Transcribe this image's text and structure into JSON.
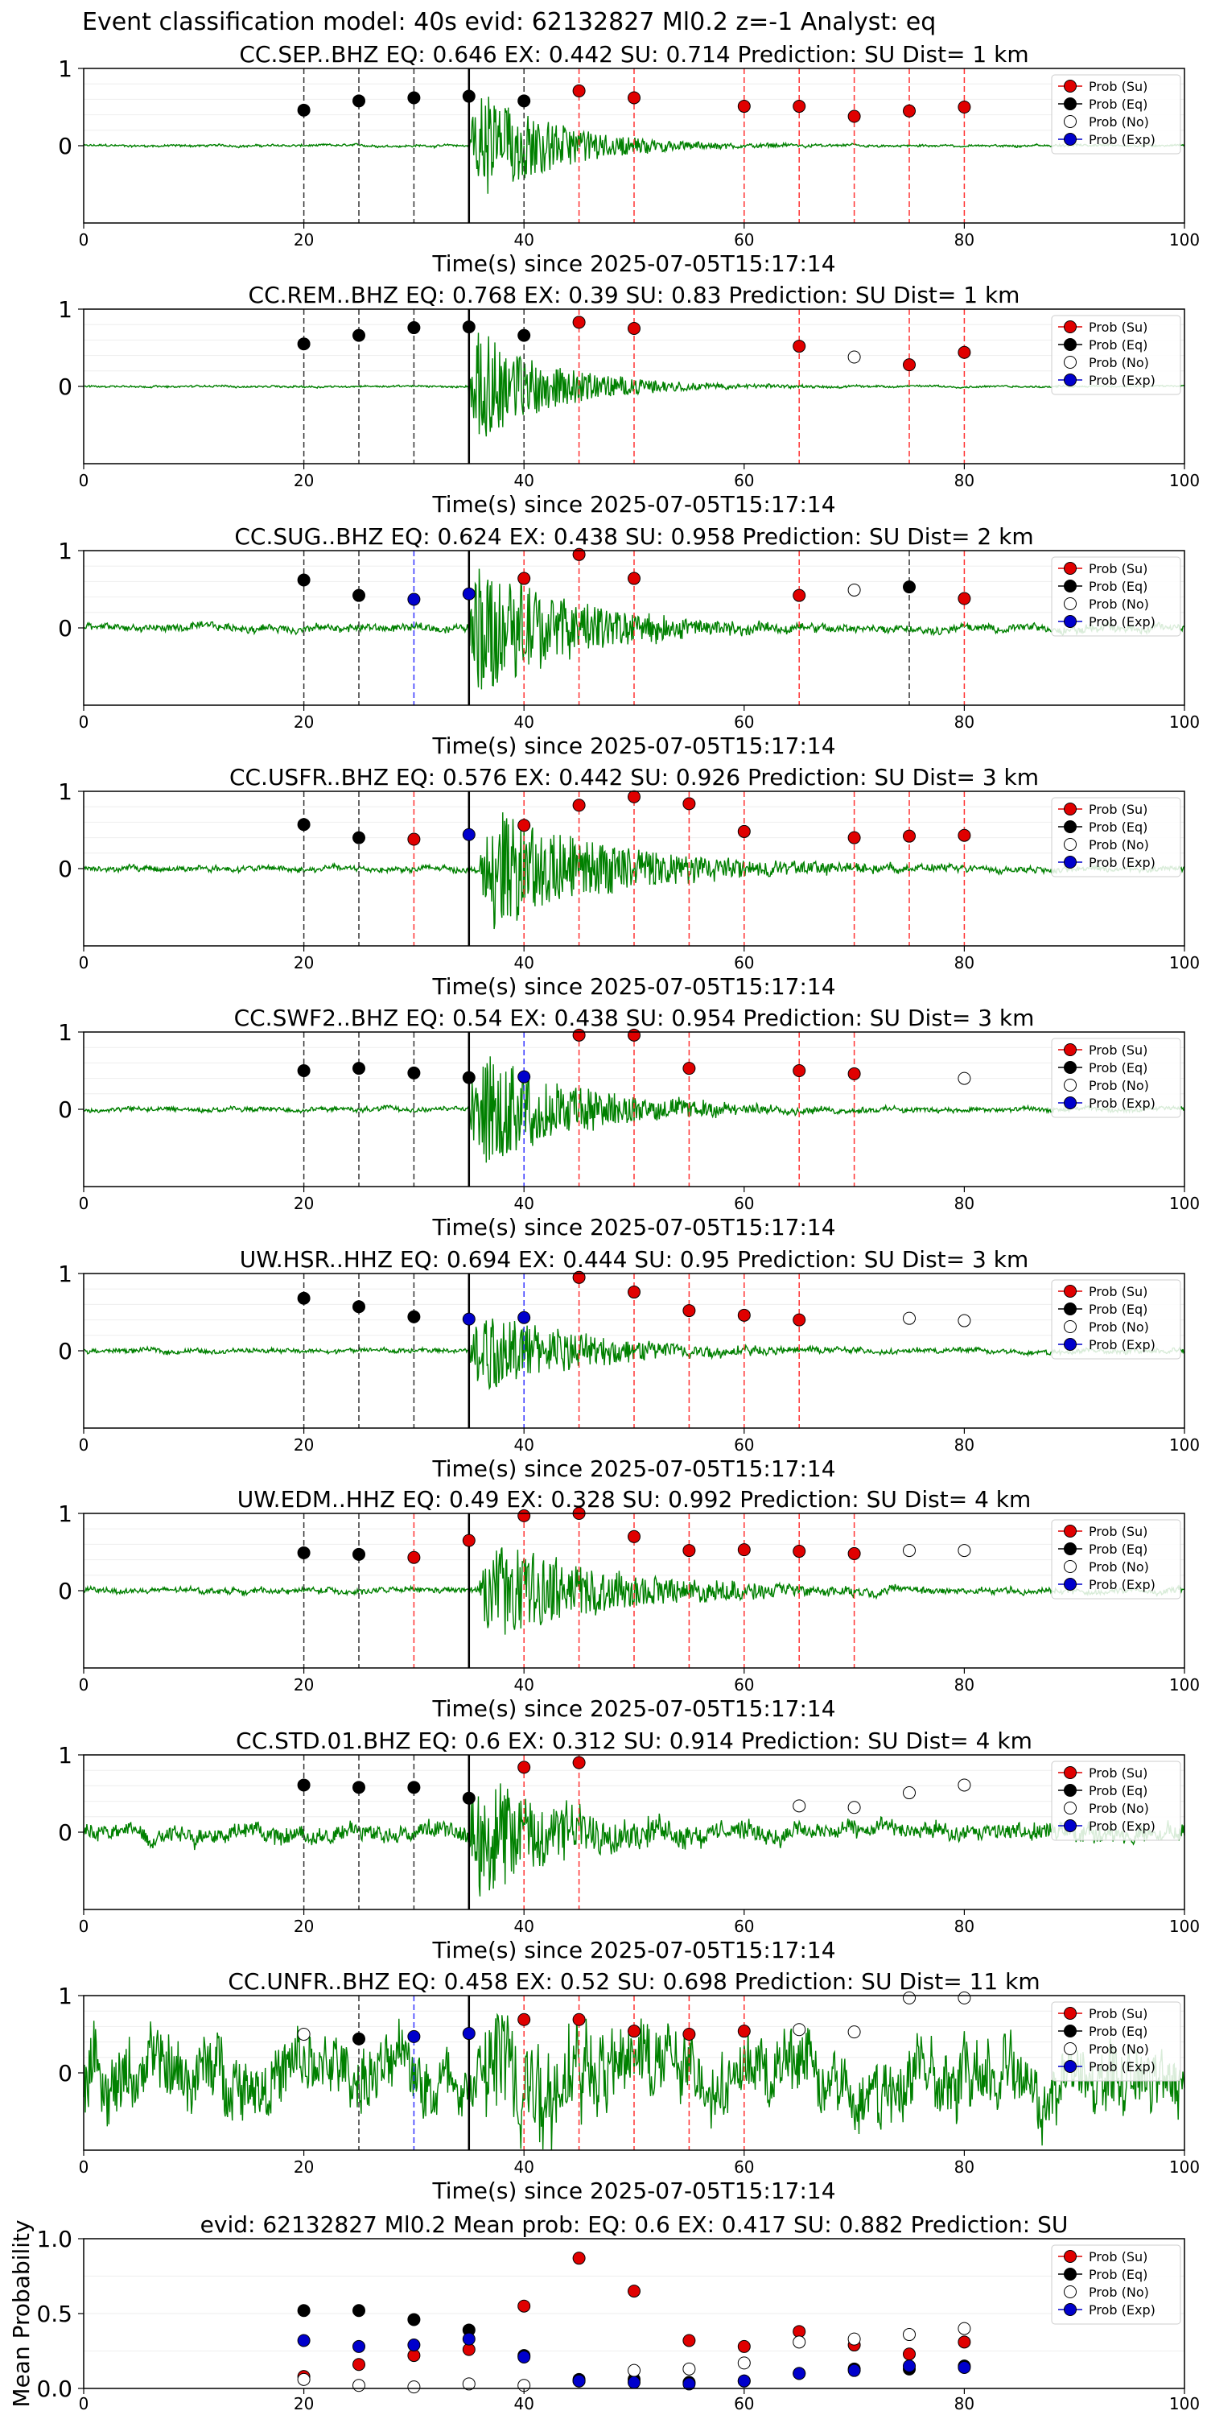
{
  "figure": {
    "title": "Event classification model: 40s evid: 62132827 Ml0.2 z=-1 Analyst: eq",
    "xlabel": "Time(s) since 2025-07-05T15:17:14",
    "legend": [
      "Prob (Su)",
      "Prob (Eq)",
      "Prob (No)",
      "Prob (Exp)"
    ]
  },
  "colors": {
    "su": "#e00000",
    "eq": "#000000",
    "no": "#ffffff",
    "exp": "#0000cc",
    "trace": "#008000"
  },
  "chart_data": [
    {
      "type": "scatter",
      "station": "CC.SEP..BHZ",
      "title": "CC.SEP..BHZ   EQ: 0.646  EX: 0.442  SU: 0.714   Prediction: SU    Dist= 1 km",
      "xlim": [
        0,
        100
      ],
      "ylim": [
        -1,
        1
      ],
      "xticks": [
        0,
        20,
        40,
        60,
        80,
        100
      ],
      "yticks": [
        0,
        1
      ],
      "noise": 0.012,
      "amp": 0.9,
      "decay": 7,
      "onset": 35,
      "points": [
        {
          "x": 20,
          "y": 0.46,
          "cls": "eq"
        },
        {
          "x": 25,
          "y": 0.58,
          "cls": "eq"
        },
        {
          "x": 30,
          "y": 0.62,
          "cls": "eq"
        },
        {
          "x": 35,
          "y": 0.64,
          "cls": "eq"
        },
        {
          "x": 40,
          "y": 0.58,
          "cls": "eq"
        },
        {
          "x": 45,
          "y": 0.71,
          "cls": "su"
        },
        {
          "x": 50,
          "y": 0.62,
          "cls": "su"
        },
        {
          "x": 60,
          "y": 0.51,
          "cls": "su"
        },
        {
          "x": 65,
          "y": 0.51,
          "cls": "su"
        },
        {
          "x": 70,
          "y": 0.38,
          "cls": "su"
        },
        {
          "x": 75,
          "y": 0.45,
          "cls": "su"
        },
        {
          "x": 80,
          "y": 0.5,
          "cls": "su"
        }
      ]
    },
    {
      "type": "scatter",
      "station": "CC.REM..BHZ",
      "title": "CC.REM..BHZ   EQ: 0.768  EX: 0.39  SU: 0.83   Prediction: SU    Dist= 1 km",
      "xlim": [
        0,
        100
      ],
      "ylim": [
        -1,
        1
      ],
      "xticks": [
        0,
        20,
        40,
        60,
        80,
        100
      ],
      "yticks": [
        0,
        1
      ],
      "noise": 0.01,
      "amp": 0.85,
      "decay": 7,
      "onset": 35,
      "points": [
        {
          "x": 20,
          "y": 0.55,
          "cls": "eq"
        },
        {
          "x": 25,
          "y": 0.66,
          "cls": "eq"
        },
        {
          "x": 30,
          "y": 0.76,
          "cls": "eq"
        },
        {
          "x": 35,
          "y": 0.77,
          "cls": "eq"
        },
        {
          "x": 40,
          "y": 0.66,
          "cls": "eq"
        },
        {
          "x": 45,
          "y": 0.83,
          "cls": "su"
        },
        {
          "x": 50,
          "y": 0.75,
          "cls": "su"
        },
        {
          "x": 65,
          "y": 0.52,
          "cls": "su"
        },
        {
          "x": 70,
          "y": 0.38,
          "cls": "no"
        },
        {
          "x": 75,
          "y": 0.28,
          "cls": "su"
        },
        {
          "x": 80,
          "y": 0.44,
          "cls": "su"
        }
      ]
    },
    {
      "type": "scatter",
      "station": "CC.SUG..BHZ",
      "title": "CC.SUG..BHZ   EQ: 0.624  EX: 0.438  SU: 0.958   Prediction: SU    Dist= 2 km",
      "xlim": [
        0,
        100
      ],
      "ylim": [
        -1,
        1
      ],
      "xticks": [
        0,
        20,
        40,
        60,
        80,
        100
      ],
      "yticks": [
        0,
        1
      ],
      "noise": 0.04,
      "amp": 1.0,
      "decay": 9,
      "onset": 35,
      "points": [
        {
          "x": 20,
          "y": 0.62,
          "cls": "eq"
        },
        {
          "x": 25,
          "y": 0.42,
          "cls": "eq"
        },
        {
          "x": 30,
          "y": 0.37,
          "cls": "exp"
        },
        {
          "x": 35,
          "y": 0.44,
          "cls": "exp"
        },
        {
          "x": 40,
          "y": 0.64,
          "cls": "su"
        },
        {
          "x": 45,
          "y": 0.95,
          "cls": "su"
        },
        {
          "x": 50,
          "y": 0.64,
          "cls": "su"
        },
        {
          "x": 65,
          "y": 0.42,
          "cls": "su"
        },
        {
          "x": 70,
          "y": 0.49,
          "cls": "no"
        },
        {
          "x": 75,
          "y": 0.53,
          "cls": "eq"
        },
        {
          "x": 80,
          "y": 0.38,
          "cls": "su"
        }
      ]
    },
    {
      "type": "scatter",
      "station": "CC.USFR..BHZ",
      "title": "CC.USFR..BHZ   EQ: 0.576  EX: 0.442  SU: 0.926   Prediction: SU    Dist= 3 km",
      "xlim": [
        0,
        100
      ],
      "ylim": [
        -1,
        1
      ],
      "xticks": [
        0,
        20,
        40,
        60,
        80,
        100
      ],
      "yticks": [
        0,
        1
      ],
      "noise": 0.03,
      "amp": 0.85,
      "decay": 12,
      "onset": 36,
      "points": [
        {
          "x": 20,
          "y": 0.57,
          "cls": "eq"
        },
        {
          "x": 25,
          "y": 0.4,
          "cls": "eq"
        },
        {
          "x": 30,
          "y": 0.38,
          "cls": "su"
        },
        {
          "x": 35,
          "y": 0.44,
          "cls": "exp"
        },
        {
          "x": 40,
          "y": 0.56,
          "cls": "su"
        },
        {
          "x": 45,
          "y": 0.82,
          "cls": "su"
        },
        {
          "x": 50,
          "y": 0.93,
          "cls": "su"
        },
        {
          "x": 55,
          "y": 0.84,
          "cls": "su"
        },
        {
          "x": 60,
          "y": 0.48,
          "cls": "su"
        },
        {
          "x": 70,
          "y": 0.4,
          "cls": "su"
        },
        {
          "x": 75,
          "y": 0.42,
          "cls": "su"
        },
        {
          "x": 80,
          "y": 0.43,
          "cls": "su"
        }
      ]
    },
    {
      "type": "scatter",
      "station": "CC.SWF2..BHZ",
      "title": "CC.SWF2..BHZ   EQ: 0.54  EX: 0.438  SU: 0.954   Prediction: SU    Dist= 3 km",
      "xlim": [
        0,
        100
      ],
      "ylim": [
        -1,
        1
      ],
      "xticks": [
        0,
        20,
        40,
        60,
        80,
        100
      ],
      "yticks": [
        0,
        1
      ],
      "noise": 0.025,
      "amp": 0.9,
      "decay": 9,
      "onset": 35,
      "points": [
        {
          "x": 20,
          "y": 0.5,
          "cls": "eq"
        },
        {
          "x": 25,
          "y": 0.53,
          "cls": "eq"
        },
        {
          "x": 30,
          "y": 0.47,
          "cls": "eq"
        },
        {
          "x": 35,
          "y": 0.41,
          "cls": "eq"
        },
        {
          "x": 40,
          "y": 0.42,
          "cls": "exp"
        },
        {
          "x": 45,
          "y": 0.96,
          "cls": "su"
        },
        {
          "x": 50,
          "y": 0.96,
          "cls": "su"
        },
        {
          "x": 55,
          "y": 0.53,
          "cls": "su"
        },
        {
          "x": 65,
          "y": 0.5,
          "cls": "su"
        },
        {
          "x": 70,
          "y": 0.46,
          "cls": "su"
        },
        {
          "x": 80,
          "y": 0.4,
          "cls": "no"
        }
      ]
    },
    {
      "type": "scatter",
      "station": "UW.HSR..HHZ",
      "title": "UW.HSR..HHZ   EQ: 0.694  EX: 0.444  SU: 0.95   Prediction: SU    Dist= 3 km",
      "xlim": [
        0,
        100
      ],
      "ylim": [
        -1,
        1
      ],
      "xticks": [
        0,
        20,
        40,
        60,
        80,
        100
      ],
      "yticks": [
        0,
        1
      ],
      "noise": 0.025,
      "amp": 0.6,
      "decay": 10,
      "onset": 35,
      "points": [
        {
          "x": 20,
          "y": 0.68,
          "cls": "eq"
        },
        {
          "x": 25,
          "y": 0.57,
          "cls": "eq"
        },
        {
          "x": 30,
          "y": 0.44,
          "cls": "eq"
        },
        {
          "x": 35,
          "y": 0.41,
          "cls": "exp"
        },
        {
          "x": 40,
          "y": 0.43,
          "cls": "exp"
        },
        {
          "x": 45,
          "y": 0.95,
          "cls": "su"
        },
        {
          "x": 50,
          "y": 0.76,
          "cls": "su"
        },
        {
          "x": 55,
          "y": 0.52,
          "cls": "su"
        },
        {
          "x": 60,
          "y": 0.46,
          "cls": "su"
        },
        {
          "x": 65,
          "y": 0.4,
          "cls": "su"
        },
        {
          "x": 75,
          "y": 0.42,
          "cls": "no"
        },
        {
          "x": 80,
          "y": 0.39,
          "cls": "no"
        }
      ]
    },
    {
      "type": "scatter",
      "station": "UW.EDM..HHZ",
      "title": "UW.EDM..HHZ   EQ: 0.49  EX: 0.328  SU: 0.992   Prediction: SU    Dist= 4 km",
      "xlim": [
        0,
        100
      ],
      "ylim": [
        -1,
        1
      ],
      "xticks": [
        0,
        20,
        40,
        60,
        80,
        100
      ],
      "yticks": [
        0,
        1
      ],
      "noise": 0.03,
      "amp": 0.7,
      "decay": 12,
      "onset": 36,
      "points": [
        {
          "x": 20,
          "y": 0.49,
          "cls": "eq"
        },
        {
          "x": 25,
          "y": 0.47,
          "cls": "eq"
        },
        {
          "x": 30,
          "y": 0.43,
          "cls": "su"
        },
        {
          "x": 35,
          "y": 0.65,
          "cls": "su"
        },
        {
          "x": 40,
          "y": 0.97,
          "cls": "su"
        },
        {
          "x": 45,
          "y": 1.0,
          "cls": "su"
        },
        {
          "x": 50,
          "y": 0.7,
          "cls": "su"
        },
        {
          "x": 55,
          "y": 0.52,
          "cls": "su"
        },
        {
          "x": 60,
          "y": 0.53,
          "cls": "su"
        },
        {
          "x": 65,
          "y": 0.51,
          "cls": "su"
        },
        {
          "x": 70,
          "y": 0.48,
          "cls": "su"
        },
        {
          "x": 75,
          "y": 0.52,
          "cls": "no"
        },
        {
          "x": 80,
          "y": 0.52,
          "cls": "no"
        }
      ]
    },
    {
      "type": "scatter",
      "station": "CC.STD.01.BHZ",
      "title": "CC.STD.01.BHZ   EQ: 0.6  EX: 0.312  SU: 0.914   Prediction: SU    Dist= 4 km",
      "xlim": [
        0,
        100
      ],
      "ylim": [
        -1,
        1
      ],
      "xticks": [
        0,
        20,
        40,
        60,
        80,
        100
      ],
      "yticks": [
        0,
        1
      ],
      "noise": 0.09,
      "amp": 1.0,
      "decay": 8,
      "onset": 35,
      "points": [
        {
          "x": 20,
          "y": 0.61,
          "cls": "eq"
        },
        {
          "x": 25,
          "y": 0.58,
          "cls": "eq"
        },
        {
          "x": 30,
          "y": 0.58,
          "cls": "eq"
        },
        {
          "x": 35,
          "y": 0.44,
          "cls": "eq"
        },
        {
          "x": 40,
          "y": 0.84,
          "cls": "su"
        },
        {
          "x": 45,
          "y": 0.9,
          "cls": "su"
        },
        {
          "x": 65,
          "y": 0.34,
          "cls": "no"
        },
        {
          "x": 70,
          "y": 0.32,
          "cls": "no"
        },
        {
          "x": 75,
          "y": 0.51,
          "cls": "no"
        },
        {
          "x": 80,
          "y": 0.61,
          "cls": "no"
        }
      ]
    },
    {
      "type": "scatter",
      "station": "CC.UNFR..BHZ",
      "title": "CC.UNFR..BHZ   EQ: 0.458  EX: 0.52  SU: 0.698   Prediction: SU    Dist= 11 km",
      "xlim": [
        0,
        100
      ],
      "ylim": [
        -1,
        1
      ],
      "xticks": [
        0,
        20,
        40,
        60,
        80,
        100
      ],
      "yticks": [
        0,
        1
      ],
      "noise": 0.35,
      "amp": 0.9,
      "decay": 10,
      "onset": 36,
      "points": [
        {
          "x": 20,
          "y": 0.5,
          "cls": "no"
        },
        {
          "x": 25,
          "y": 0.44,
          "cls": "eq"
        },
        {
          "x": 30,
          "y": 0.47,
          "cls": "exp"
        },
        {
          "x": 35,
          "y": 0.51,
          "cls": "exp"
        },
        {
          "x": 40,
          "y": 0.69,
          "cls": "su"
        },
        {
          "x": 45,
          "y": 0.69,
          "cls": "su"
        },
        {
          "x": 50,
          "y": 0.54,
          "cls": "su"
        },
        {
          "x": 55,
          "y": 0.5,
          "cls": "su"
        },
        {
          "x": 60,
          "y": 0.54,
          "cls": "su"
        },
        {
          "x": 65,
          "y": 0.56,
          "cls": "no"
        },
        {
          "x": 70,
          "y": 0.53,
          "cls": "no"
        },
        {
          "x": 75,
          "y": 0.97,
          "cls": "no"
        },
        {
          "x": 80,
          "y": 0.97,
          "cls": "no"
        }
      ]
    },
    {
      "type": "scatter",
      "title": "evid: 62132827  Ml0.2   Mean prob:    EQ: 0.6  EX: 0.417  SU: 0.882   Prediction: SU",
      "ylabel": "Mean Probability",
      "xlim": [
        0,
        100
      ],
      "ylim": [
        0,
        1
      ],
      "xticks": [
        0,
        20,
        40,
        60,
        80,
        100
      ],
      "yticks": [
        0.0,
        0.5,
        1.0
      ],
      "x": [
        20,
        25,
        30,
        35,
        40,
        45,
        50,
        55,
        60,
        65,
        70,
        75,
        80
      ],
      "series": [
        {
          "name": "Prob (Su)",
          "cls": "su",
          "values": [
            0.08,
            0.16,
            0.22,
            0.26,
            0.55,
            0.87,
            0.65,
            0.32,
            0.28,
            0.38,
            0.29,
            0.23,
            0.31
          ]
        },
        {
          "name": "Prob (Eq)",
          "cls": "eq",
          "values": [
            0.52,
            0.52,
            0.46,
            0.39,
            0.22,
            0.06,
            0.06,
            0.04,
            0.05,
            0.1,
            0.13,
            0.13,
            0.15
          ]
        },
        {
          "name": "Prob (No)",
          "cls": "no",
          "values": [
            0.06,
            0.02,
            0.01,
            0.03,
            0.02,
            0.05,
            0.12,
            0.13,
            0.17,
            0.31,
            0.33,
            0.36,
            0.4
          ]
        },
        {
          "name": "Prob (Exp)",
          "cls": "exp",
          "values": [
            0.32,
            0.28,
            0.29,
            0.33,
            0.21,
            0.05,
            0.04,
            0.03,
            0.05,
            0.1,
            0.12,
            0.15,
            0.14
          ]
        }
      ]
    }
  ]
}
